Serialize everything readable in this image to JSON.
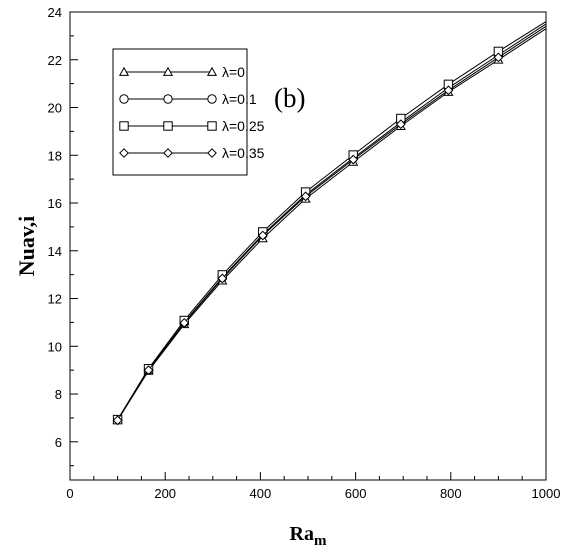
{
  "chart_data": {
    "type": "line",
    "title": "",
    "annotation": "(b)",
    "xlabel": {
      "main": "Ra",
      "sub": "m"
    },
    "ylabel": "Nuav,i",
    "xlim": [
      0,
      1000
    ],
    "ylim": [
      4.4,
      24
    ],
    "x_ticks": [
      0,
      200,
      400,
      600,
      800,
      1000
    ],
    "x_minor_step": 50,
    "y_ticks": [
      6,
      8,
      10,
      12,
      14,
      16,
      18,
      20,
      22,
      24
    ],
    "y_minor_step": 1,
    "grid": false,
    "legend_position": "top-left",
    "x": [
      100,
      165,
      240,
      320,
      405,
      495,
      595,
      695,
      795,
      900
    ],
    "series": [
      {
        "name": "λ=0",
        "marker": "triangle",
        "values": [
          6.9,
          8.97,
          10.92,
          12.75,
          14.52,
          16.18,
          17.72,
          19.22,
          20.65,
          22.0
        ],
        "end_value": 23.3
      },
      {
        "name": "λ=0.1",
        "marker": "circle",
        "values": [
          6.92,
          9.02,
          11.0,
          12.88,
          14.68,
          16.35,
          17.88,
          19.38,
          20.82,
          22.2
        ],
        "end_value": 23.5
      },
      {
        "name": "λ=0.25",
        "marker": "square",
        "values": [
          6.93,
          9.06,
          11.08,
          12.99,
          14.79,
          16.46,
          18.01,
          19.54,
          20.97,
          22.35
        ],
        "end_value": 23.6
      },
      {
        "name": "λ=0.35",
        "marker": "diamond",
        "values": [
          6.9,
          9.0,
          10.98,
          12.84,
          14.64,
          16.28,
          17.82,
          19.3,
          20.72,
          22.1
        ],
        "end_value": 23.4
      }
    ]
  }
}
